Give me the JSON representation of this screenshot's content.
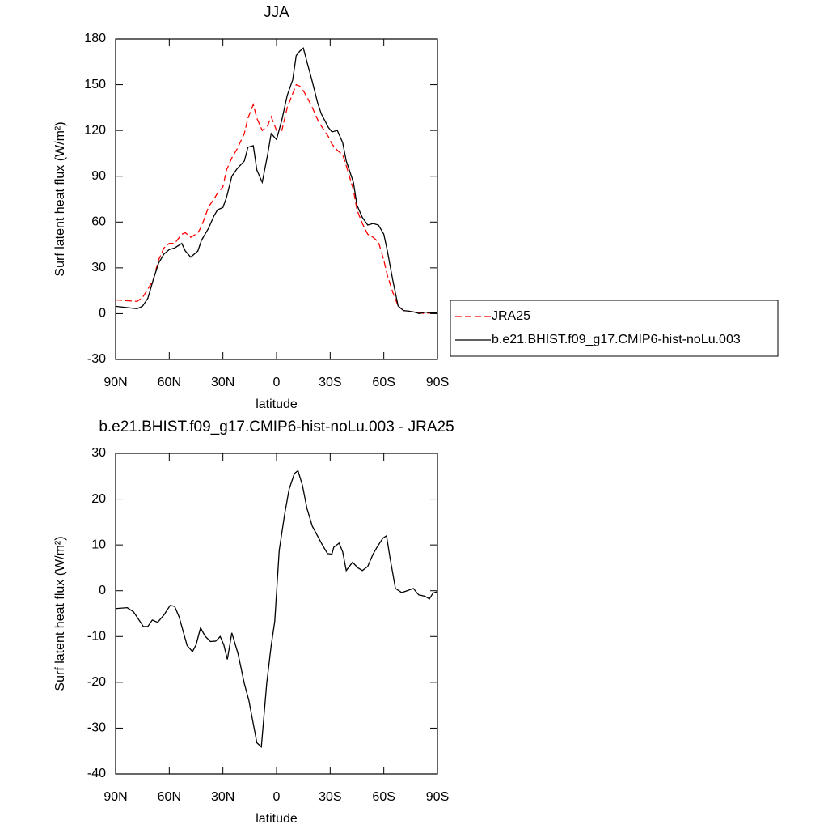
{
  "chart_data": [
    {
      "type": "line",
      "title": "JJA",
      "xlabel": "latitude",
      "ylabel": "Surf latent heat flux (W/m²)",
      "x": [
        90,
        78,
        75,
        72,
        69,
        66,
        63,
        60,
        57,
        53,
        51,
        48,
        44,
        42,
        38,
        35,
        33,
        30,
        28,
        25,
        22,
        18,
        16,
        13,
        11,
        8,
        5,
        3,
        0,
        -3,
        -6,
        -9,
        -11,
        -13,
        -15,
        -17,
        -20,
        -23,
        -25,
        -29,
        -31,
        -34,
        -37,
        -39,
        -43,
        -45,
        -48,
        -51,
        -54,
        -57,
        -60,
        -62,
        -65,
        -68,
        -71,
        -74,
        -77,
        -80,
        -83,
        -86,
        -90
      ],
      "series": [
        {
          "name": "JRA25",
          "color": "#ff0000",
          "dash": "dashed",
          "values": [
            9,
            8,
            10.5,
            16,
            22,
            35,
            43,
            46,
            46,
            52,
            53,
            50,
            53,
            57,
            70,
            75,
            79,
            83,
            94,
            102,
            108,
            118,
            128,
            137,
            128,
            120,
            123,
            129,
            120,
            120,
            135,
            144,
            150,
            149,
            146,
            142,
            135,
            127,
            123,
            116,
            111,
            107,
            104,
            97,
            81,
            68,
            59,
            52,
            50,
            47,
            35,
            25,
            14,
            5,
            2,
            1.6,
            1,
            0.5,
            0,
            0.5,
            0.5
          ]
        },
        {
          "name": "b.e21.BHIST.f09_g17.CMIP6-hist-noLu.003",
          "color": "#000000",
          "dash": "solid",
          "values": [
            4.8,
            3.2,
            4.8,
            10,
            22,
            33,
            39,
            42,
            43,
            46,
            41,
            37,
            41,
            48,
            56,
            64,
            68,
            69.5,
            76,
            90,
            95,
            100,
            109,
            110,
            94,
            86,
            104,
            118,
            114,
            127,
            143,
            153,
            169,
            172,
            174,
            165,
            152,
            138,
            131,
            122,
            119,
            120,
            112,
            100,
            86,
            71,
            63,
            58,
            59,
            58,
            52,
            41,
            22,
            5,
            2,
            1.6,
            1,
            0,
            1,
            0.5,
            0.5
          ]
        }
      ],
      "xlim": [
        90,
        -90
      ],
      "xticks": [
        {
          "value": 90,
          "label": "90N"
        },
        {
          "value": 60,
          "label": "60N"
        },
        {
          "value": 30,
          "label": "30N"
        },
        0,
        {
          "value": -30,
          "label": "30S"
        },
        {
          "value": -60,
          "label": "60S"
        },
        {
          "value": -90,
          "label": "90S"
        }
      ],
      "ylim": [
        -30,
        180
      ],
      "yticks": [
        -30,
        0,
        30,
        60,
        90,
        120,
        150,
        180
      ],
      "legend": "right"
    },
    {
      "type": "line",
      "title": "b.e21.BHIST.f09_g17.CMIP6-hist-noLu.003 - JRA25",
      "xlabel": "latitude",
      "ylabel": "Surf latent heat flux (W/m²)",
      "x": [
        90,
        83.5,
        80,
        74.5,
        72,
        69.5,
        66.5,
        63,
        59.5,
        57,
        54.5,
        50,
        47,
        45,
        42.5,
        40,
        37,
        34,
        31.5,
        29.5,
        27.5,
        25,
        21.5,
        18,
        15.5,
        11,
        8.5,
        5.5,
        3,
        1,
        -1.5,
        -4.5,
        -7,
        -10,
        -12,
        -14.5,
        -17,
        -20,
        -25.5,
        -28.5,
        -31,
        -32,
        -35,
        -37,
        -39,
        -42.5,
        -45.5,
        -48,
        -51,
        -54,
        -56.5,
        -59.5,
        -61.5,
        -63.5,
        -66.5,
        -70,
        -73,
        -76.5,
        -79.5,
        -83,
        -85.5,
        -87.5,
        -90
      ],
      "series": [
        {
          "color": "#000000",
          "dash": "solid",
          "values": [
            -3.9,
            -3.7,
            -4.6,
            -7.8,
            -7.8,
            -6.4,
            -6.9,
            -5.3,
            -3.2,
            -3.4,
            -5.7,
            -12,
            -13.3,
            -11.8,
            -8.1,
            -9.9,
            -11.1,
            -11,
            -10,
            -11.8,
            -15,
            -9.2,
            -13.8,
            -20.3,
            -23.9,
            -33.2,
            -34.1,
            -20.3,
            -12,
            -6.7,
            8.8,
            16.6,
            22.1,
            25.6,
            26.2,
            23,
            18,
            14.1,
            10.1,
            8.1,
            8,
            9.5,
            10.4,
            8.5,
            4.4,
            6.2,
            5,
            4.4,
            5.3,
            8,
            9.7,
            11.5,
            12,
            7.1,
            0.5,
            -0.4,
            0,
            0.5,
            -0.9,
            -1.2,
            -1.8,
            -0.5,
            -0.2
          ]
        }
      ],
      "xlim": [
        90,
        -90
      ],
      "xticks": [
        {
          "value": 90,
          "label": "90N"
        },
        {
          "value": 60,
          "label": "60N"
        },
        {
          "value": 30,
          "label": "30N"
        },
        0,
        {
          "value": -30,
          "label": "30S"
        },
        {
          "value": -60,
          "label": "60S"
        },
        {
          "value": -90,
          "label": "90S"
        }
      ],
      "ylim": [
        -40,
        30
      ],
      "yticks": [
        -40,
        -30,
        -20,
        -10,
        0,
        10,
        20,
        30
      ]
    }
  ]
}
